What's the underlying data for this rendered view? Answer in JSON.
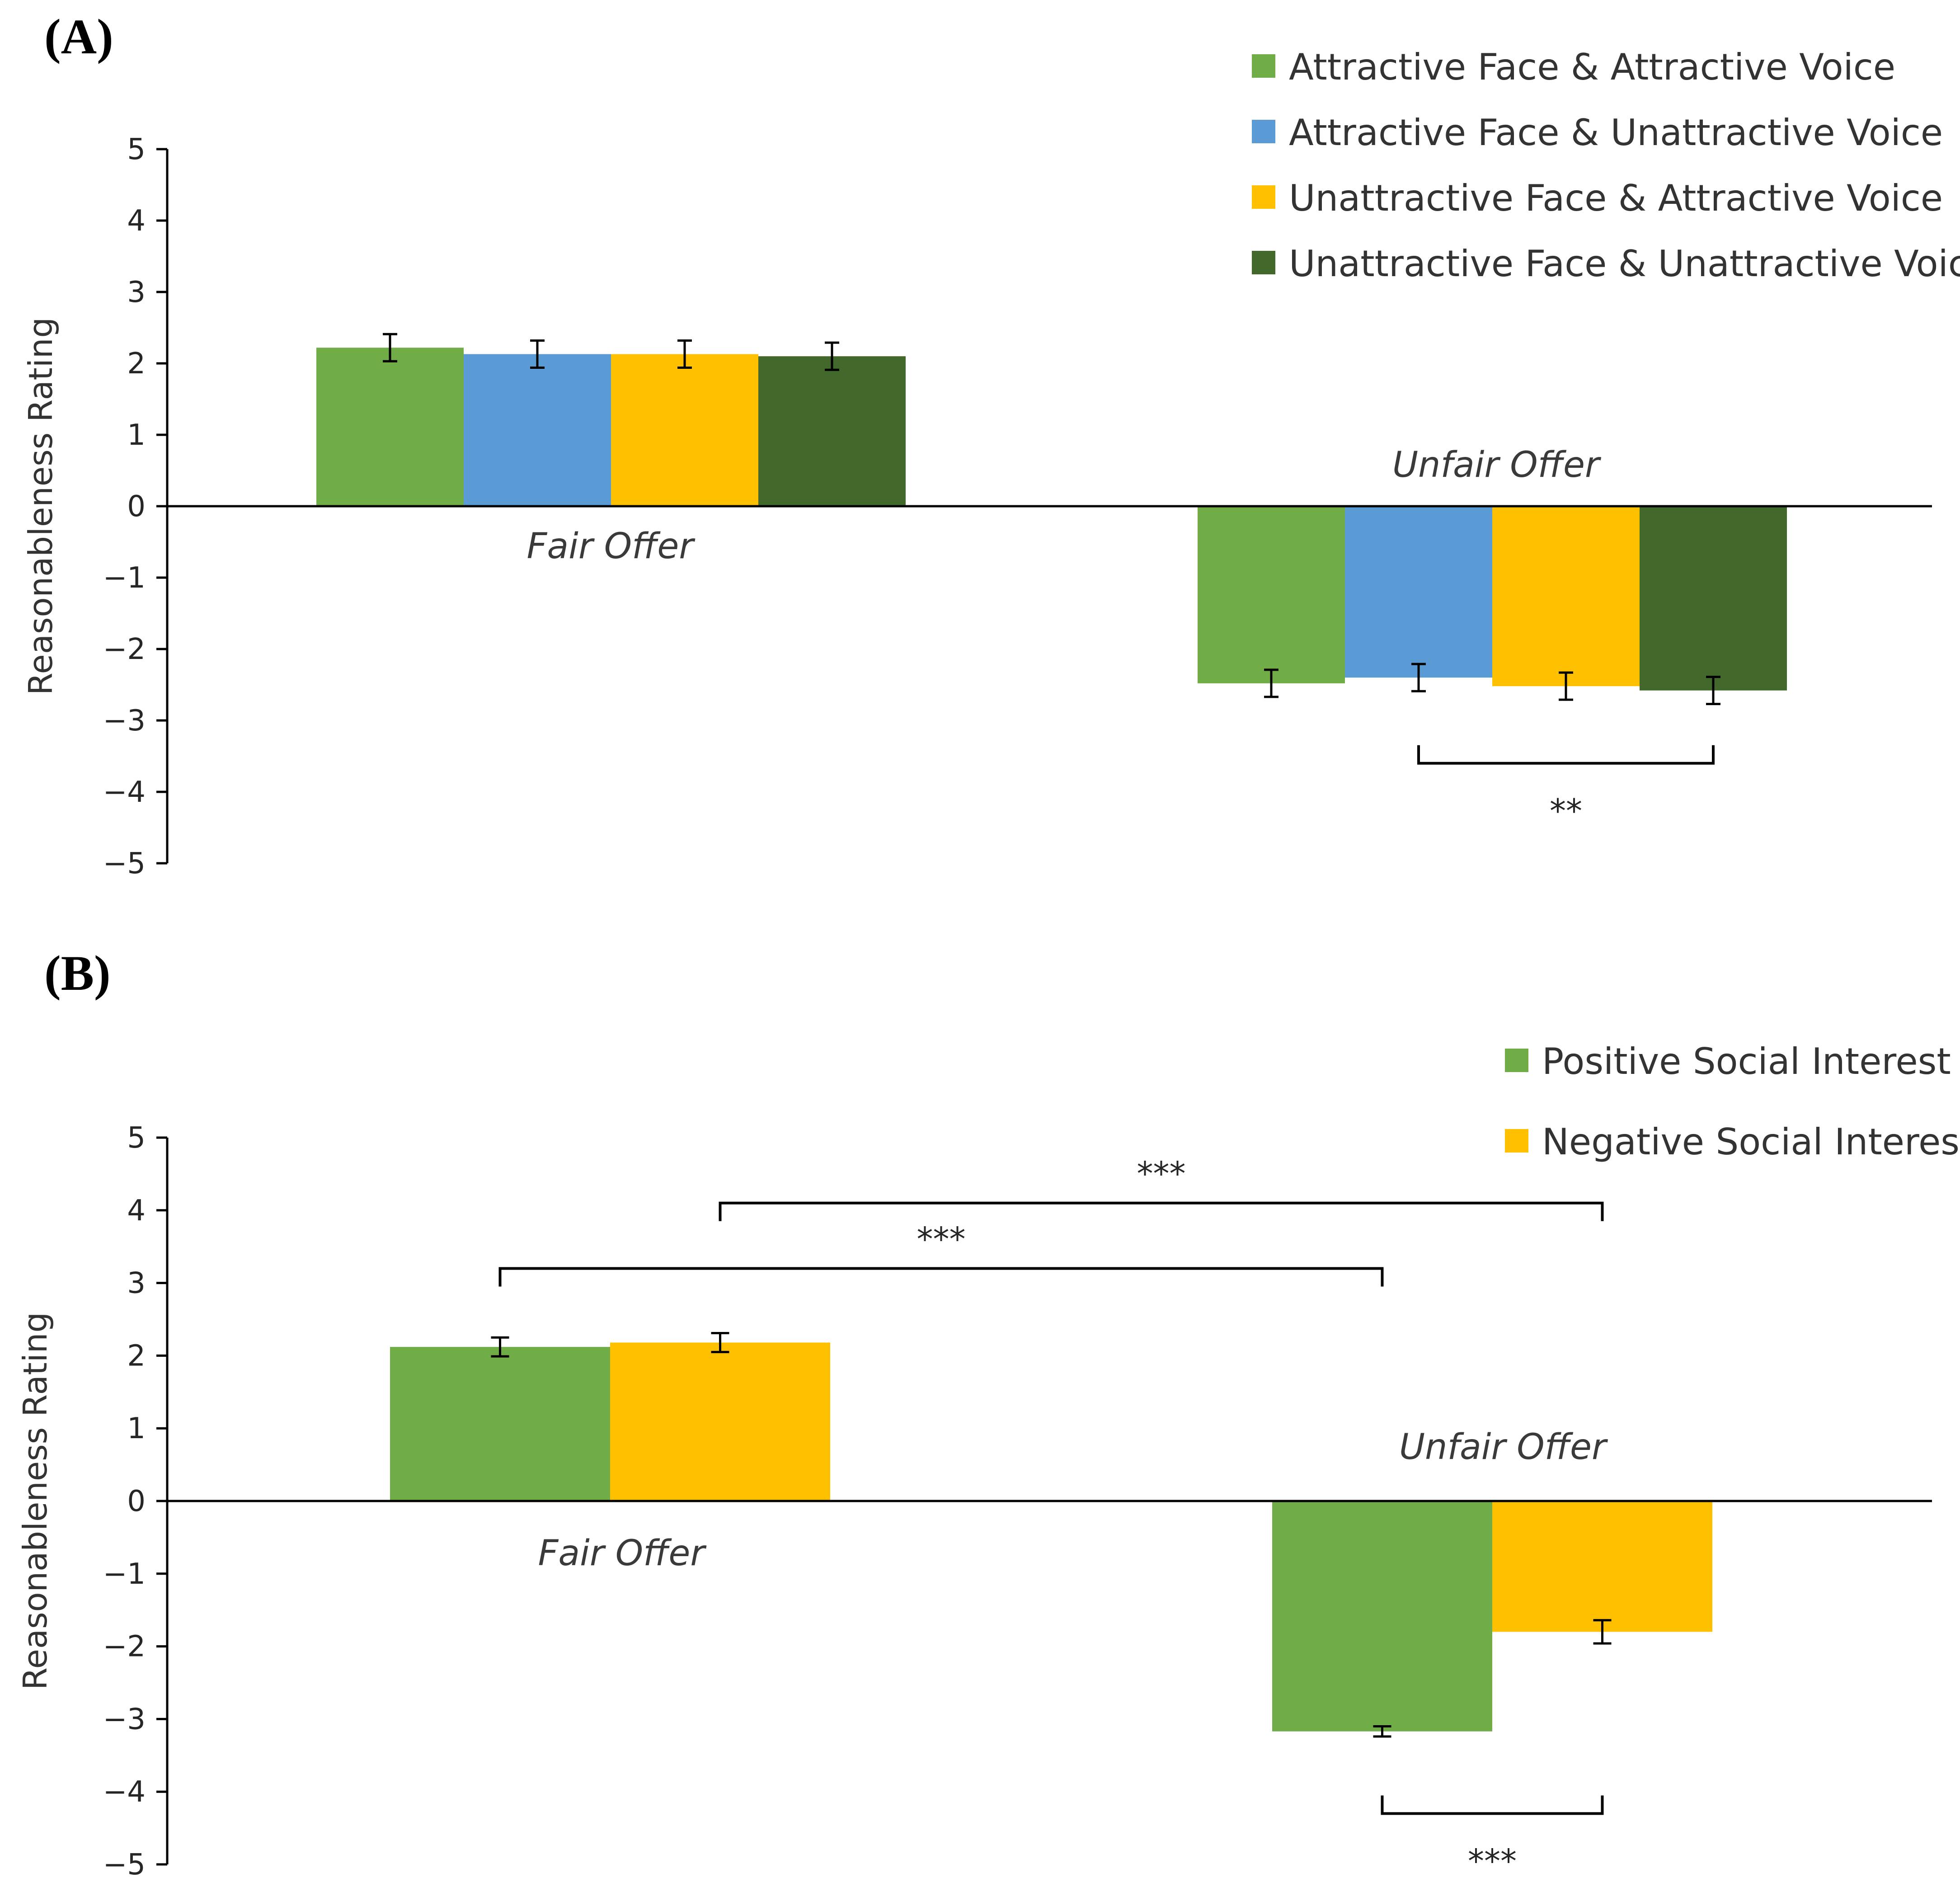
{
  "chart_data": [
    {
      "panel_label": "(A)",
      "type": "bar",
      "ylabel": "Reasonableness Rating",
      "ylim": [
        -5,
        5
      ],
      "yticks": [
        5,
        4,
        3,
        2,
        1,
        0,
        -1,
        -2,
        -3,
        -4,
        -5
      ],
      "ytick_labels": [
        "5",
        "4",
        "3",
        "2",
        "1",
        "0",
        "−1",
        "−2",
        "−3",
        "−4",
        "−5"
      ],
      "categories": [
        "Fair Offer",
        "Unfair Offer"
      ],
      "series": [
        {
          "name": "Attractive Face & Attractive Voice",
          "color": "#70AD47",
          "values": [
            2.22,
            -2.48
          ],
          "errors": [
            0.19,
            0.19
          ]
        },
        {
          "name": "Attractive Face & Unattractive Voice",
          "color": "#5B9BD5",
          "values": [
            2.13,
            -2.4
          ],
          "errors": [
            0.19,
            0.19
          ]
        },
        {
          "name": "Unattractive Face & Attractive Voice",
          "color": "#FFC000",
          "values": [
            2.13,
            -2.52
          ],
          "errors": [
            0.19,
            0.19
          ]
        },
        {
          "name": "Unattractive Face & Unattractive Voice",
          "color": "#43682B",
          "values": [
            2.1,
            -2.58
          ],
          "errors": [
            0.19,
            0.19
          ]
        }
      ],
      "significance": [
        {
          "label": "**",
          "from": {
            "category": 1,
            "series": 1
          },
          "to": {
            "category": 1,
            "series": 3
          },
          "y": -3.6
        }
      ],
      "legend_position": "top-right"
    },
    {
      "panel_label": "(B)",
      "type": "bar",
      "ylabel": "Reasonableness Rating",
      "ylim": [
        -5,
        5
      ],
      "yticks": [
        5,
        4,
        3,
        2,
        1,
        0,
        -1,
        -2,
        -3,
        -4,
        -5
      ],
      "ytick_labels": [
        "5",
        "4",
        "3",
        "2",
        "1",
        "0",
        "−1",
        "−2",
        "−3",
        "−4",
        "−5"
      ],
      "categories": [
        "Fair Offer",
        "Unfair Offer"
      ],
      "series": [
        {
          "name": "Positive Social Interest",
          "color": "#70AD47",
          "values": [
            2.12,
            -3.17
          ],
          "errors": [
            0.13,
            0.07
          ]
        },
        {
          "name": "Negative Social Interest",
          "color": "#FFC000",
          "values": [
            2.18,
            -1.8
          ],
          "errors": [
            0.13,
            0.16
          ]
        }
      ],
      "significance": [
        {
          "label": "***",
          "from": {
            "category": 0,
            "series": 0
          },
          "to": {
            "category": 1,
            "series": 0
          },
          "y": 3.2
        },
        {
          "label": "***",
          "from": {
            "category": 0,
            "series": 1
          },
          "to": {
            "category": 1,
            "series": 1
          },
          "y": 4.1
        },
        {
          "label": "***",
          "from": {
            "category": 1,
            "series": 0
          },
          "to": {
            "category": 1,
            "series": 1
          },
          "y": -4.3
        }
      ],
      "legend_position": "top-right"
    }
  ]
}
